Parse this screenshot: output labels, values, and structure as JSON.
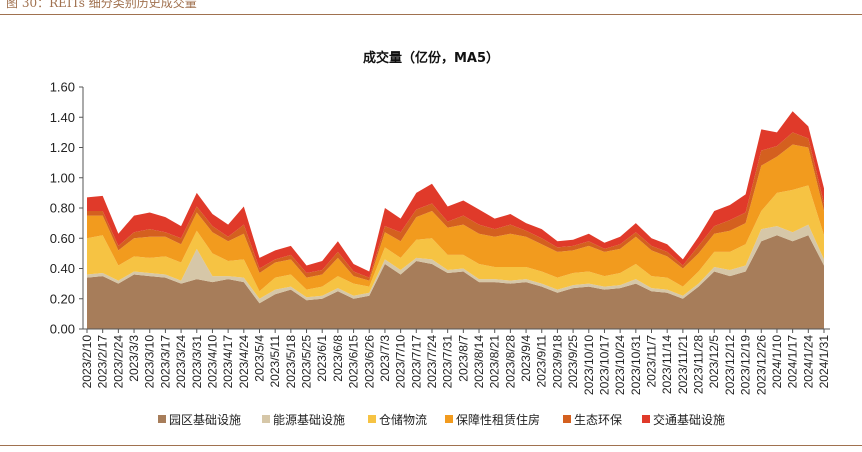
{
  "figure_caption": "图 30：REITs 细分类别历史成交量",
  "chart_data": {
    "type": "area",
    "stacked": true,
    "title": "成交量（亿份，MA5）",
    "ylim": [
      0,
      1.6
    ],
    "yticks": [
      "0.00",
      "0.20",
      "0.40",
      "0.60",
      "0.80",
      "1.00",
      "1.20",
      "1.40",
      "1.60"
    ],
    "xticks": [
      "2023/2/10",
      "2023/2/17",
      "2023/2/24",
      "2023/3/3",
      "2023/3/10",
      "2023/3/17",
      "2023/3/24",
      "2023/3/31",
      "2023/4/10",
      "2023/4/17",
      "2023/4/24",
      "2023/5/4",
      "2023/5/11",
      "2023/5/18",
      "2023/5/25",
      "2023/6/1",
      "2023/6/8",
      "2023/6/15",
      "2023/6/26",
      "2023/7/3",
      "2023/7/10",
      "2023/7/17",
      "2023/7/24",
      "2023/7/31",
      "2023/8/7",
      "2023/8/14",
      "2023/8/21",
      "2023/8/28",
      "2023/9/4",
      "2023/9/11",
      "2023/9/18",
      "2023/9/25",
      "2023/10/10",
      "2023/10/17",
      "2023/10/24",
      "2023/10/31",
      "2023/11/7",
      "2023/11/14",
      "2023/11/21",
      "2023/11/28",
      "2023/12/5",
      "2023/12/12",
      "2023/12/19",
      "2023/12/26",
      "2024/1/10",
      "2024/1/17",
      "2024/1/24",
      "2024/1/31"
    ],
    "series": [
      {
        "name": "园区基础设施",
        "color": "#a77d5a",
        "values": [
          0.34,
          0.35,
          0.3,
          0.36,
          0.35,
          0.34,
          0.3,
          0.33,
          0.31,
          0.33,
          0.31,
          0.17,
          0.23,
          0.26,
          0.19,
          0.2,
          0.25,
          0.2,
          0.22,
          0.43,
          0.36,
          0.45,
          0.43,
          0.37,
          0.38,
          0.31,
          0.31,
          0.3,
          0.31,
          0.28,
          0.24,
          0.27,
          0.28,
          0.26,
          0.27,
          0.3,
          0.25,
          0.24,
          0.2,
          0.28,
          0.38,
          0.35,
          0.38,
          0.58,
          0.62,
          0.58,
          0.62,
          0.42
        ]
      },
      {
        "name": "能源基础设施",
        "color": "#d6c7a8",
        "values": [
          0.02,
          0.02,
          0.02,
          0.02,
          0.02,
          0.02,
          0.02,
          0.2,
          0.04,
          0.02,
          0.03,
          0.03,
          0.03,
          0.02,
          0.02,
          0.02,
          0.02,
          0.02,
          0.02,
          0.03,
          0.03,
          0.02,
          0.03,
          0.02,
          0.02,
          0.02,
          0.02,
          0.02,
          0.02,
          0.02,
          0.02,
          0.02,
          0.02,
          0.02,
          0.02,
          0.03,
          0.02,
          0.02,
          0.02,
          0.02,
          0.03,
          0.04,
          0.04,
          0.08,
          0.06,
          0.06,
          0.07,
          0.04
        ]
      },
      {
        "name": "仓储物流",
        "color": "#f6c343",
        "values": [
          0.24,
          0.25,
          0.1,
          0.1,
          0.1,
          0.12,
          0.12,
          0.12,
          0.15,
          0.1,
          0.12,
          0.05,
          0.08,
          0.08,
          0.05,
          0.06,
          0.08,
          0.08,
          0.04,
          0.08,
          0.08,
          0.12,
          0.14,
          0.1,
          0.09,
          0.1,
          0.08,
          0.09,
          0.08,
          0.08,
          0.08,
          0.08,
          0.08,
          0.07,
          0.08,
          0.1,
          0.08,
          0.08,
          0.06,
          0.08,
          0.1,
          0.12,
          0.14,
          0.12,
          0.22,
          0.28,
          0.26,
          0.16
        ]
      },
      {
        "name": "保障性租赁住房",
        "color": "#f29b1e",
        "values": [
          0.15,
          0.13,
          0.1,
          0.12,
          0.14,
          0.13,
          0.12,
          0.12,
          0.14,
          0.13,
          0.17,
          0.12,
          0.1,
          0.1,
          0.08,
          0.08,
          0.12,
          0.05,
          0.04,
          0.1,
          0.11,
          0.15,
          0.18,
          0.18,
          0.2,
          0.2,
          0.2,
          0.22,
          0.2,
          0.18,
          0.17,
          0.15,
          0.17,
          0.16,
          0.16,
          0.18,
          0.17,
          0.14,
          0.12,
          0.12,
          0.12,
          0.14,
          0.14,
          0.3,
          0.24,
          0.3,
          0.25,
          0.16
        ]
      },
      {
        "name": "生态环保",
        "color": "#d4601f",
        "values": [
          0.03,
          0.03,
          0.03,
          0.04,
          0.05,
          0.03,
          0.04,
          0.04,
          0.04,
          0.03,
          0.06,
          0.03,
          0.02,
          0.03,
          0.03,
          0.03,
          0.04,
          0.03,
          0.02,
          0.04,
          0.06,
          0.05,
          0.05,
          0.04,
          0.06,
          0.06,
          0.05,
          0.06,
          0.04,
          0.04,
          0.03,
          0.03,
          0.03,
          0.02,
          0.03,
          0.03,
          0.03,
          0.03,
          0.02,
          0.05,
          0.05,
          0.07,
          0.07,
          0.1,
          0.07,
          0.08,
          0.06,
          0.05
        ]
      },
      {
        "name": "交通基础设施",
        "color": "#e03a2a",
        "values": [
          0.09,
          0.1,
          0.08,
          0.11,
          0.11,
          0.1,
          0.08,
          0.09,
          0.08,
          0.08,
          0.12,
          0.07,
          0.06,
          0.06,
          0.05,
          0.06,
          0.07,
          0.05,
          0.04,
          0.12,
          0.09,
          0.11,
          0.13,
          0.1,
          0.1,
          0.1,
          0.07,
          0.07,
          0.05,
          0.06,
          0.04,
          0.04,
          0.05,
          0.04,
          0.05,
          0.06,
          0.05,
          0.05,
          0.04,
          0.06,
          0.1,
          0.1,
          0.12,
          0.14,
          0.09,
          0.14,
          0.08,
          0.1
        ]
      }
    ],
    "legend_position": "bottom",
    "grid": false
  }
}
